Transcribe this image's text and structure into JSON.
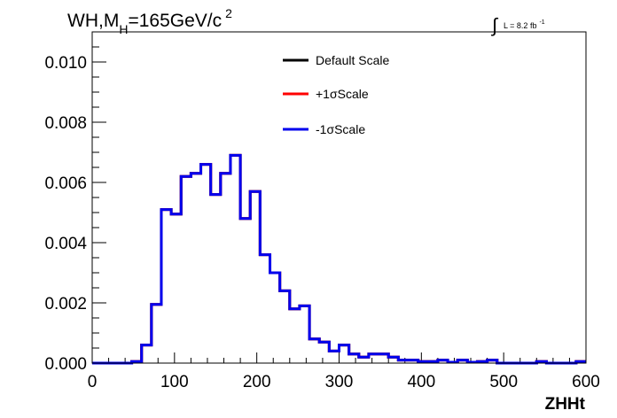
{
  "chart_data": {
    "type": "line",
    "title": "WH,M_H=165GeV/c^2",
    "title_parts": {
      "main": "WH,M",
      "sub": "H",
      "rest": "=165GeV/c",
      "sup": "2"
    },
    "lumi_label": {
      "integral": "∫",
      "text": "L = 8.2 fb",
      "sup": "-1"
    },
    "xlabel": "ZHHt",
    "ylabel": "",
    "xlim": [
      0,
      600
    ],
    "ylim": [
      0,
      0.011
    ],
    "x_ticks": [
      0,
      100,
      200,
      300,
      400,
      500,
      600
    ],
    "x_tick_labels": [
      "0",
      "100",
      "200",
      "300",
      "400",
      "500",
      "600"
    ],
    "y_ticks": [
      0,
      0.002,
      0.004,
      0.006,
      0.008,
      0.01
    ],
    "y_tick_labels": [
      "0.000",
      "0.002",
      "0.004",
      "0.006",
      "0.008",
      "0.010"
    ],
    "grid": false,
    "legend_position": "top-center",
    "bin_edges": [
      0,
      12,
      24,
      36,
      48,
      60,
      72,
      84,
      96,
      108,
      120,
      132,
      144,
      156,
      168,
      180,
      192,
      204,
      216,
      228,
      240,
      252,
      264,
      276,
      288,
      300,
      312,
      324,
      336,
      348,
      360,
      372,
      384,
      396,
      408,
      420,
      432,
      444,
      456,
      468,
      480,
      492,
      504,
      516,
      528,
      540,
      552,
      564,
      576,
      588,
      600
    ],
    "series": [
      {
        "name": "Default Scale",
        "color": "#000000",
        "values": [
          0,
          0,
          0,
          0,
          5e-05,
          0.0006,
          0.00195,
          0.0051,
          0.00495,
          0.0062,
          0.0063,
          0.0066,
          0.0056,
          0.0063,
          0.0069,
          0.0048,
          0.0057,
          0.0036,
          0.003,
          0.0024,
          0.0018,
          0.0019,
          0.0008,
          0.0007,
          0.0004,
          0.0006,
          0.0003,
          0.0002,
          0.0003,
          0.0003,
          0.0002,
          0.0001,
          0.0001,
          5e-05,
          5e-05,
          0.0001,
          3e-05,
          0.0001,
          3e-05,
          5e-05,
          0.0001,
          0,
          0,
          0,
          0,
          5e-05,
          0,
          0,
          0,
          5e-05
        ]
      },
      {
        "name": "+1σScale",
        "color": "#ff0000",
        "values": [
          0,
          0,
          0,
          0,
          5e-05,
          0.0006,
          0.00195,
          0.0051,
          0.00495,
          0.0062,
          0.0063,
          0.0066,
          0.0056,
          0.0063,
          0.0069,
          0.0048,
          0.0057,
          0.0036,
          0.003,
          0.0024,
          0.0018,
          0.0019,
          0.0008,
          0.0007,
          0.0004,
          0.0006,
          0.0003,
          0.0002,
          0.0003,
          0.0003,
          0.0002,
          0.0001,
          0.0001,
          5e-05,
          5e-05,
          0.0001,
          3e-05,
          0.0001,
          3e-05,
          5e-05,
          0.0001,
          0,
          0,
          0,
          0,
          5e-05,
          0,
          0,
          0,
          5e-05
        ]
      },
      {
        "name": "-1σScale",
        "color": "#0000ee",
        "values": [
          0,
          0,
          0,
          0,
          5e-05,
          0.0006,
          0.00195,
          0.0051,
          0.00495,
          0.0062,
          0.0063,
          0.0066,
          0.0056,
          0.0063,
          0.0069,
          0.0048,
          0.0057,
          0.0036,
          0.003,
          0.0024,
          0.0018,
          0.0019,
          0.0008,
          0.0007,
          0.0004,
          0.0006,
          0.0003,
          0.0002,
          0.0003,
          0.0003,
          0.0002,
          0.0001,
          0.0001,
          5e-05,
          5e-05,
          0.0001,
          3e-05,
          0.0001,
          3e-05,
          5e-05,
          0.0001,
          0,
          0,
          0,
          0,
          5e-05,
          0,
          0,
          0,
          5e-05
        ]
      }
    ]
  }
}
